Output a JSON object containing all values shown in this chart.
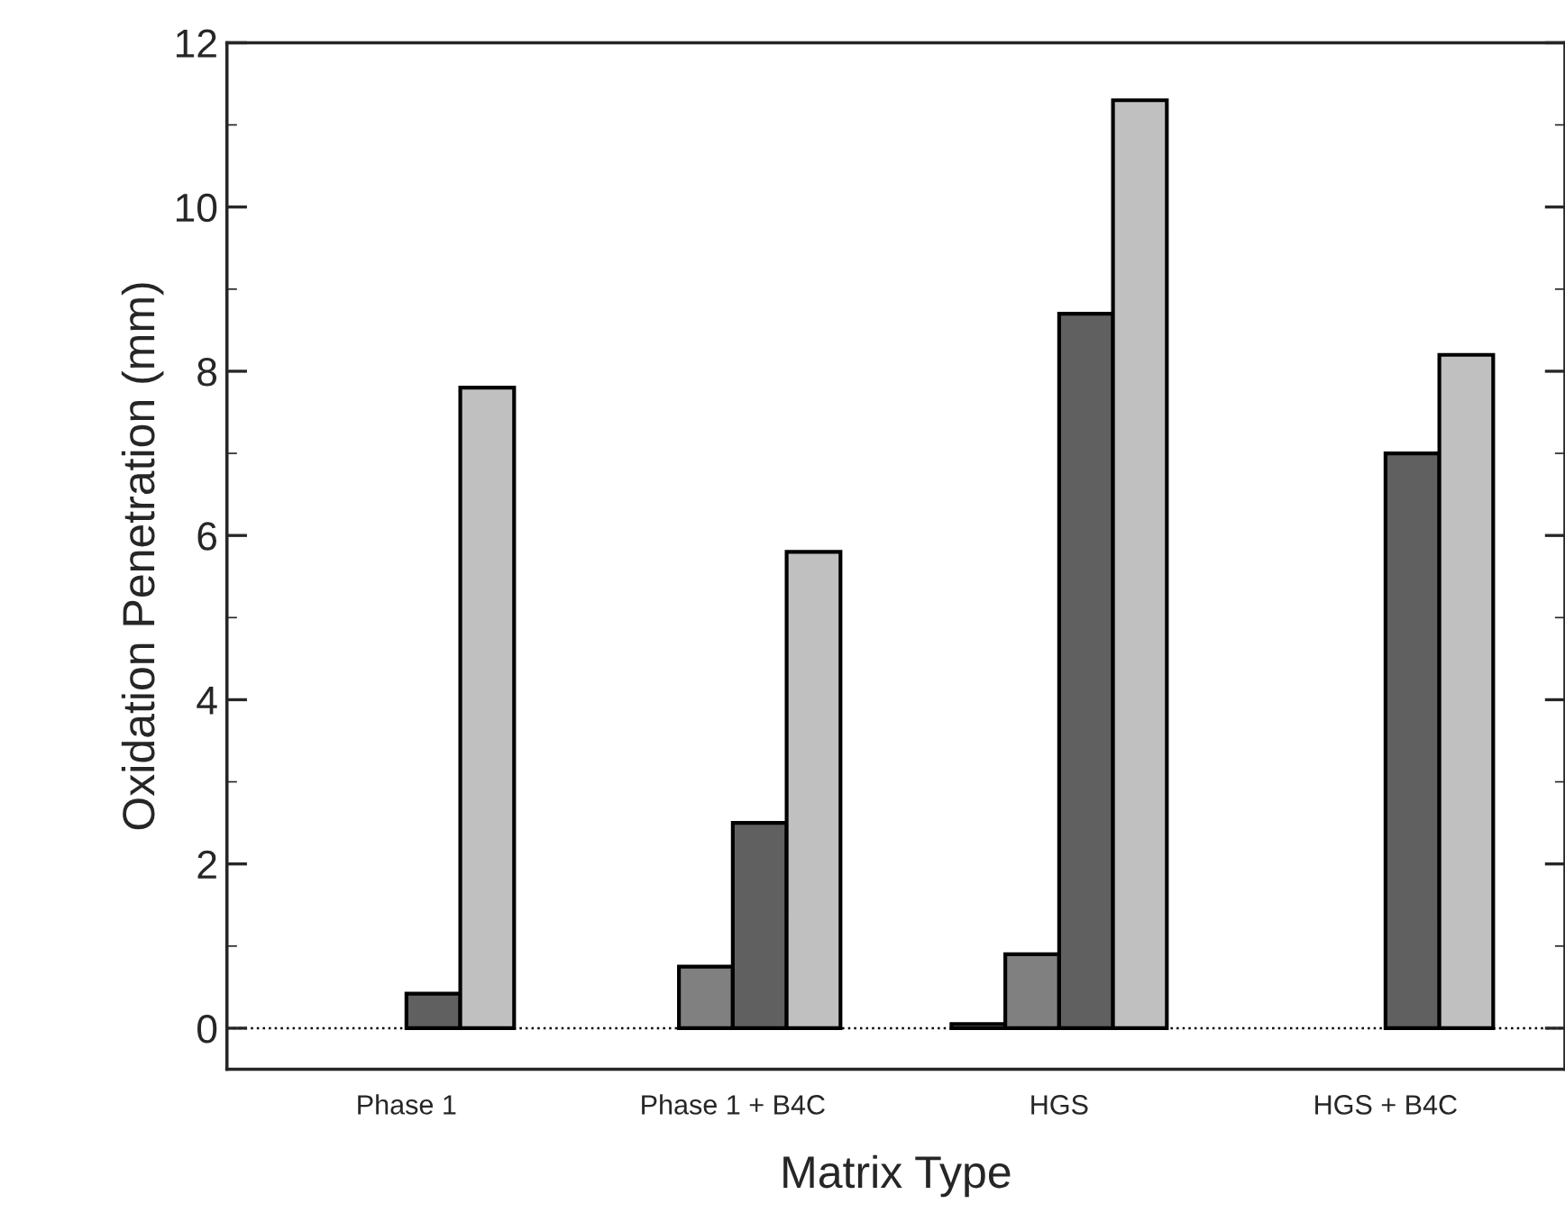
{
  "chart_data": {
    "type": "bar",
    "xlabel": "Matrix Type",
    "ylabel": "Oxidation Penetration (mm)",
    "categories": [
      "Phase 1",
      "Phase 1 + B4C",
      "HGS",
      "HGS + B4C"
    ],
    "series": [
      {
        "color": "#ffffff",
        "values": [
          0,
          0,
          0.05,
          0
        ]
      },
      {
        "color": "#808080",
        "values": [
          0,
          0.75,
          0.9,
          0
        ]
      },
      {
        "color": "#606060",
        "values": [
          0.42,
          2.5,
          8.7,
          7.0
        ]
      },
      {
        "color": "#c0c0c0",
        "values": [
          7.8,
          5.8,
          11.3,
          8.2
        ]
      }
    ],
    "ylim": [
      -0.5,
      12
    ],
    "yticks": [
      0,
      2,
      4,
      6,
      8,
      10,
      12
    ],
    "ref_lines": [
      {
        "axis": "y",
        "value": 0,
        "line_style": "dotted",
        "color": "#000000"
      }
    ],
    "grid": false,
    "legend": false
  }
}
